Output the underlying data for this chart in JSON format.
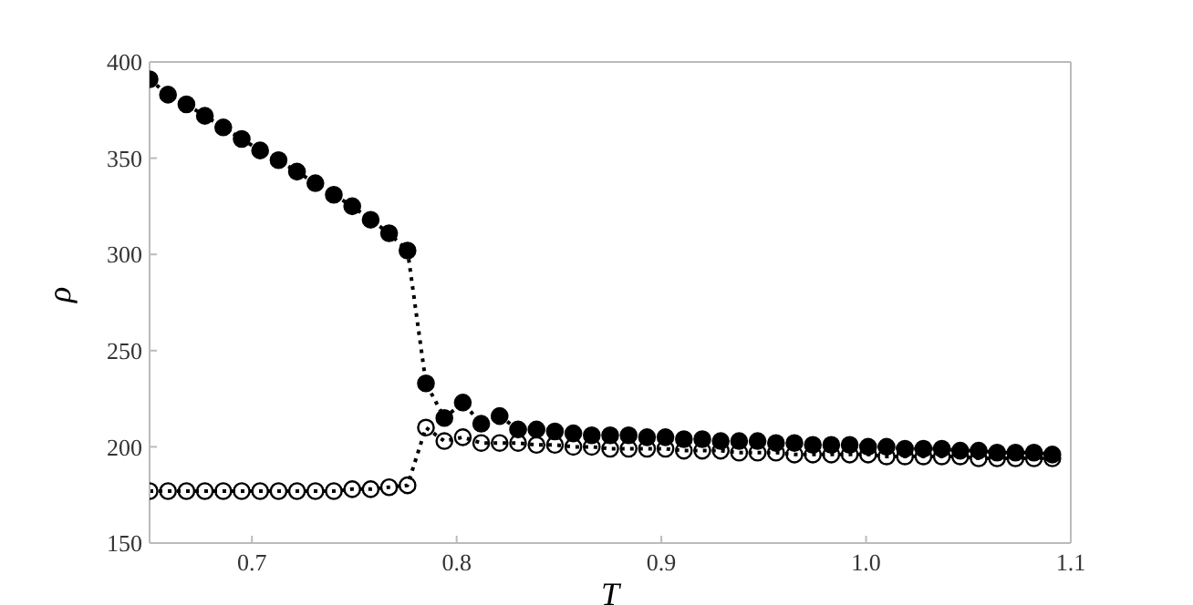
{
  "chart_data": {
    "type": "line",
    "xlabel": "T",
    "ylabel": "ρ",
    "x": [
      0.65,
      0.659,
      0.668,
      0.677,
      0.686,
      0.695,
      0.704,
      0.713,
      0.722,
      0.731,
      0.74,
      0.749,
      0.758,
      0.767,
      0.776,
      0.785,
      0.794,
      0.803,
      0.812,
      0.821,
      0.83,
      0.839,
      0.848,
      0.857,
      0.866,
      0.875,
      0.884,
      0.893,
      0.902,
      0.911,
      0.92,
      0.929,
      0.938,
      0.947,
      0.956,
      0.965,
      0.974,
      0.983,
      0.992,
      1.001,
      1.01,
      1.019,
      1.028,
      1.037,
      1.046,
      1.055,
      1.064,
      1.073,
      1.082,
      1.091
    ],
    "series": [
      {
        "color": "#000000",
        "values": [
          391,
          383,
          378,
          372,
          366,
          360,
          354,
          349,
          343,
          337,
          331,
          325,
          318,
          311,
          302,
          233,
          215,
          223,
          212,
          216,
          209,
          209,
          208,
          207,
          206,
          206,
          206,
          205,
          205,
          204,
          204,
          203,
          203,
          203,
          202,
          202,
          201,
          201,
          201,
          200,
          200,
          199,
          199,
          199,
          198,
          198,
          197,
          197,
          197,
          196
        ]
      },
      {
        "color": "#000000",
        "values": [
          177,
          177,
          177,
          177,
          177,
          177,
          177,
          177,
          177,
          177,
          177,
          178,
          178,
          179,
          180,
          210,
          203,
          205,
          202,
          202,
          202,
          201,
          201,
          200,
          200,
          199,
          199,
          199,
          199,
          198,
          198,
          198,
          197,
          197,
          197,
          196,
          196,
          196,
          196,
          196,
          195,
          195,
          195,
          195,
          195,
          194,
          194,
          194,
          194,
          194
        ]
      }
    ],
    "xlim": [
      0.65,
      1.1
    ],
    "xticks": [
      0.7,
      0.8,
      0.9,
      {
        "value": 1,
        "label": "1.0"
      },
      1.1
    ],
    "ylim": [
      150,
      400
    ],
    "yticks": [
      150,
      200,
      250,
      300,
      350,
      400
    ],
    "grid": false,
    "legend": false,
    "marker": "circle",
    "line_style": "dotted"
  }
}
